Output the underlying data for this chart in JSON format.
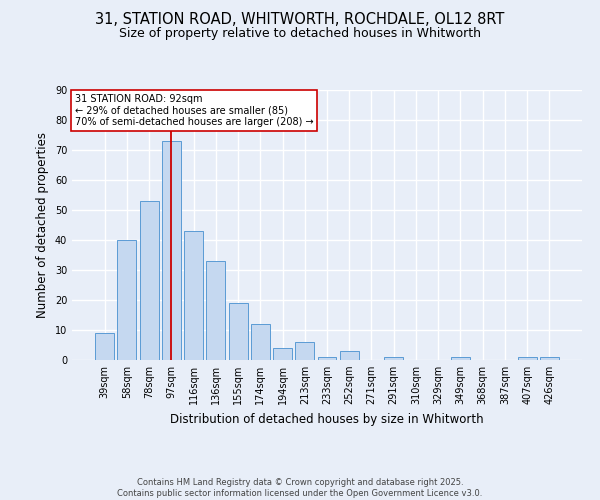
{
  "title_line1": "31, STATION ROAD, WHITWORTH, ROCHDALE, OL12 8RT",
  "title_line2": "Size of property relative to detached houses in Whitworth",
  "xlabel": "Distribution of detached houses by size in Whitworth",
  "ylabel": "Number of detached properties",
  "bar_color": "#c5d8f0",
  "bar_edge_color": "#5b9bd5",
  "background_color": "#e8eef8",
  "grid_color": "#ffffff",
  "categories": [
    "39sqm",
    "58sqm",
    "78sqm",
    "97sqm",
    "116sqm",
    "136sqm",
    "155sqm",
    "174sqm",
    "194sqm",
    "213sqm",
    "233sqm",
    "252sqm",
    "271sqm",
    "291sqm",
    "310sqm",
    "329sqm",
    "349sqm",
    "368sqm",
    "387sqm",
    "407sqm",
    "426sqm"
  ],
  "values": [
    9,
    40,
    53,
    73,
    43,
    33,
    19,
    12,
    4,
    6,
    1,
    3,
    0,
    1,
    0,
    0,
    1,
    0,
    0,
    1,
    1
  ],
  "ylim": [
    0,
    90
  ],
  "yticks": [
    0,
    10,
    20,
    30,
    40,
    50,
    60,
    70,
    80,
    90
  ],
  "vline_index": 3,
  "vline_color": "#cc0000",
  "annotation_text": "31 STATION ROAD: 92sqm\n← 29% of detached houses are smaller (85)\n70% of semi-detached houses are larger (208) →",
  "annotation_box_color": "#cc0000",
  "annotation_bg": "#ffffff",
  "footer_line1": "Contains HM Land Registry data © Crown copyright and database right 2025.",
  "footer_line2": "Contains public sector information licensed under the Open Government Licence v3.0.",
  "title_fontsize": 10.5,
  "subtitle_fontsize": 9,
  "axis_label_fontsize": 8.5,
  "tick_fontsize": 7,
  "annotation_fontsize": 7,
  "footer_fontsize": 6
}
